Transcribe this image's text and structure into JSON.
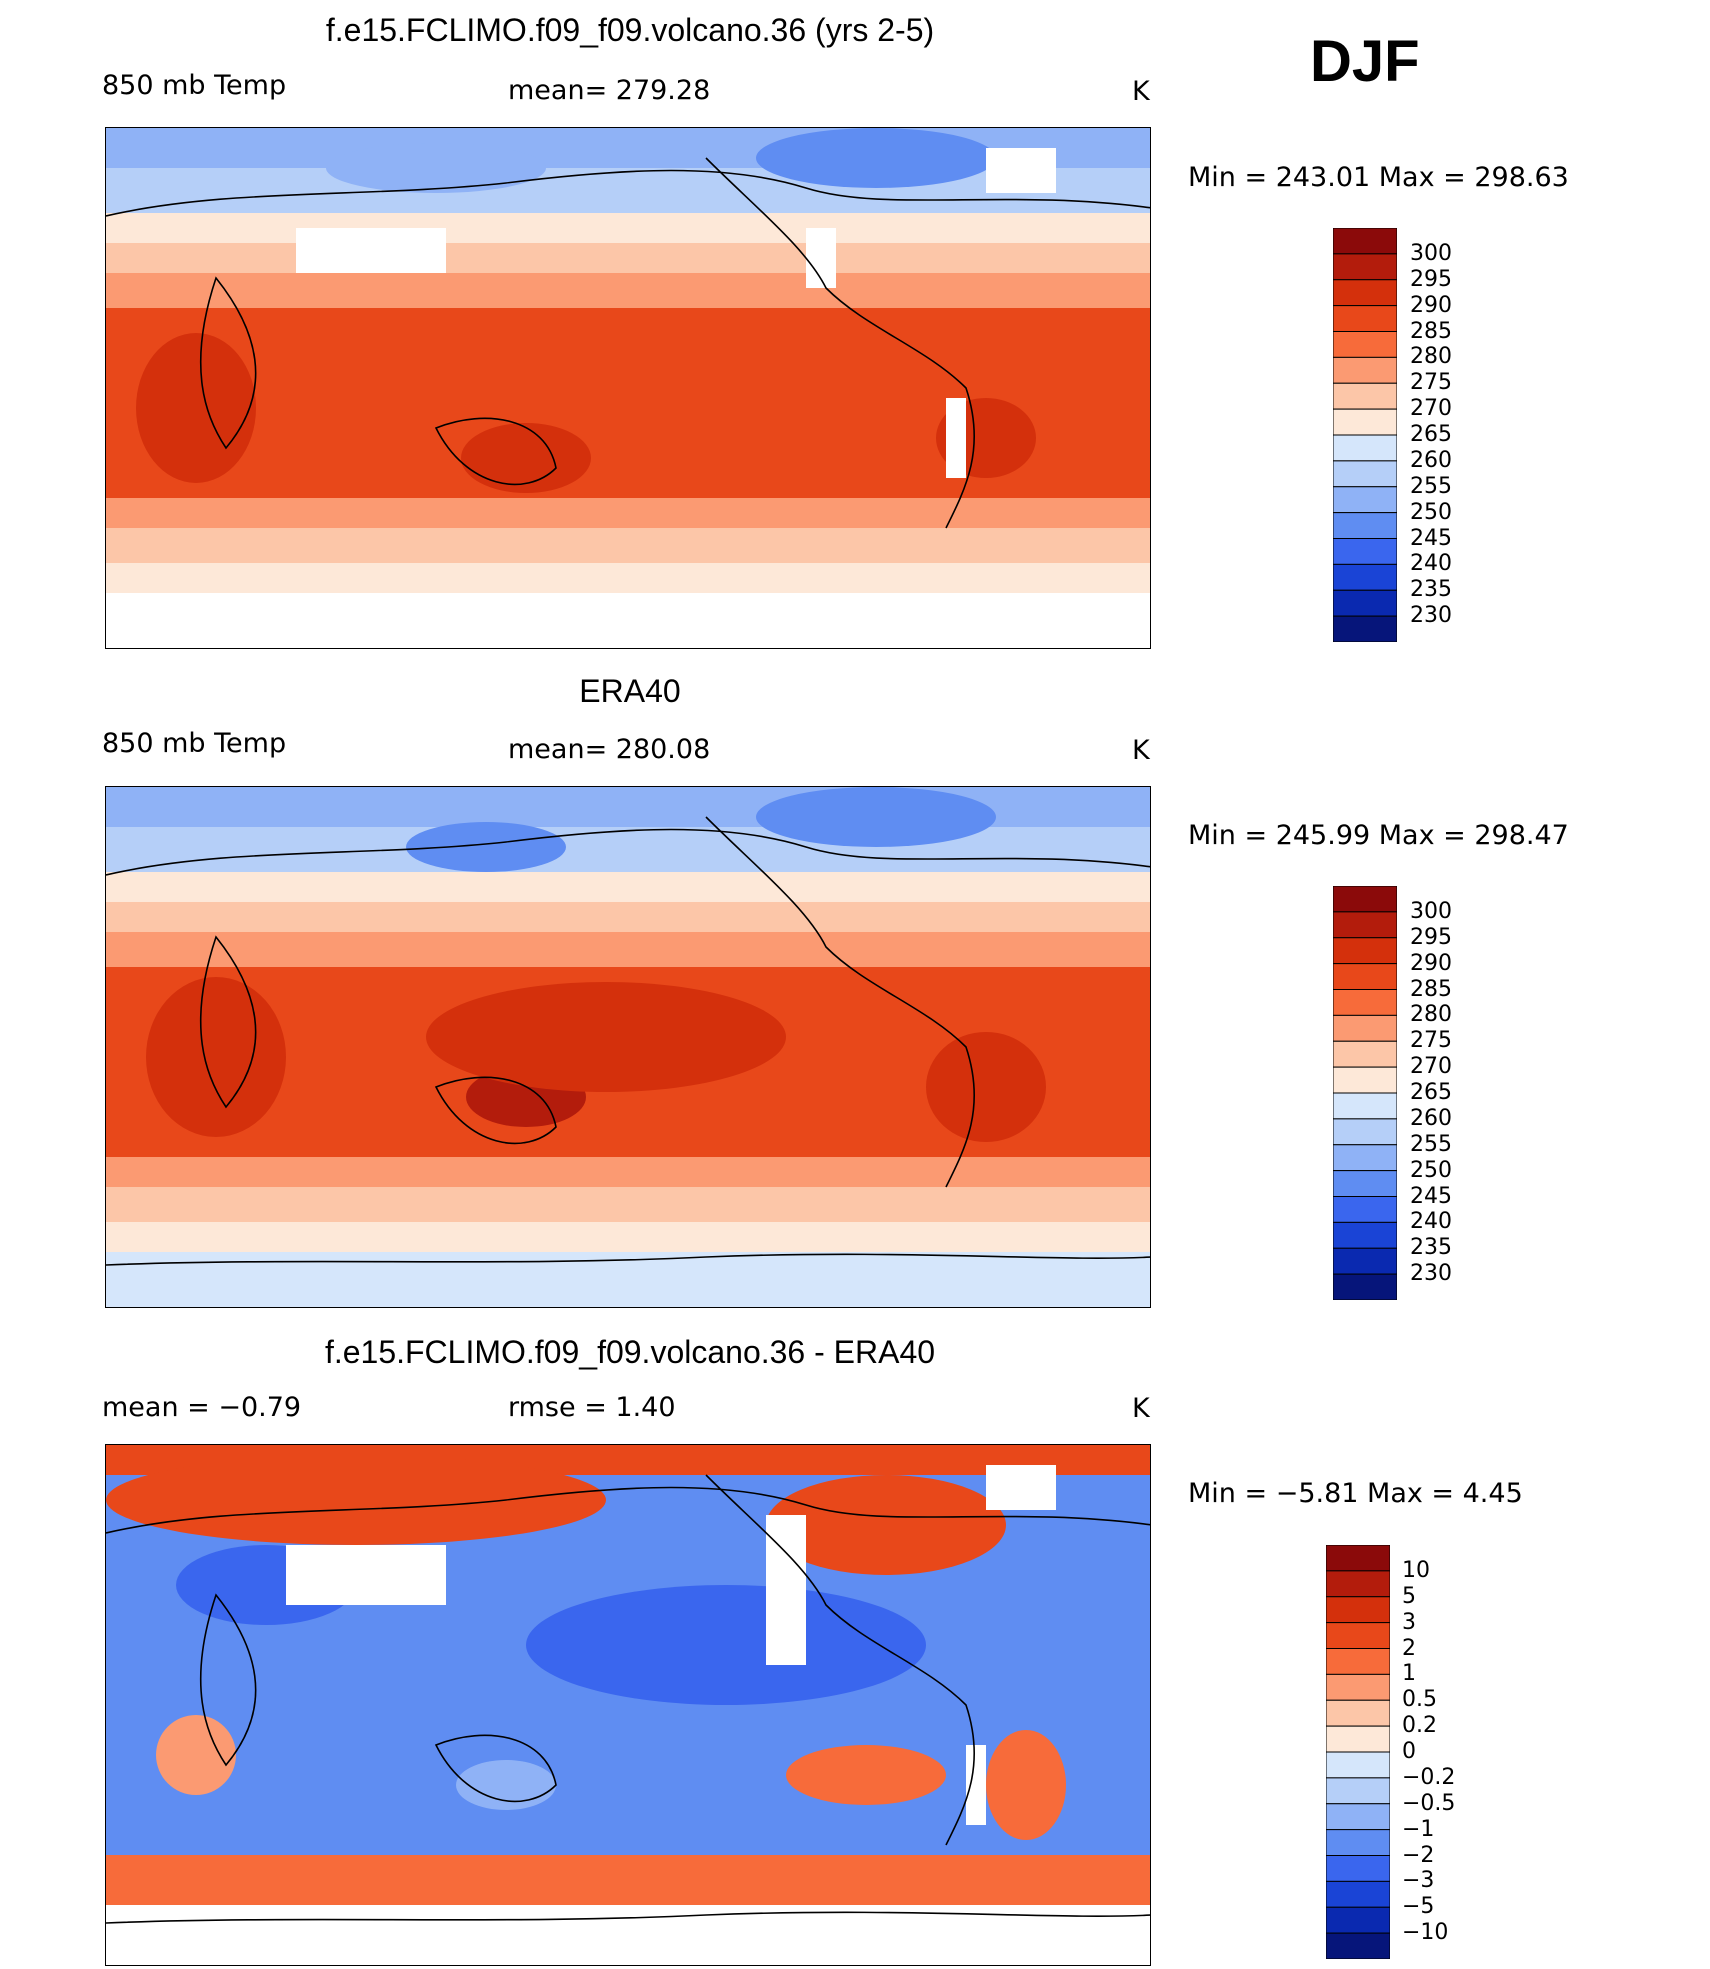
{
  "season": "DJF",
  "panels": [
    {
      "title": "f.e15.FCLIMO.f09_f09.volcano.36 (yrs 2-5)",
      "left_label": "850 mb Temp",
      "center_label": "mean=  279.28",
      "units": "K",
      "minmax": "Min  =  243.01  Max  =  298.63",
      "kind": "abs"
    },
    {
      "title": "ERA40",
      "left_label": "850 mb Temp",
      "center_label": "mean=  280.08",
      "units": "K",
      "minmax": "Min  =  245.99  Max  =  298.47",
      "kind": "abs"
    },
    {
      "title": "f.e15.FCLIMO.f09_f09.volcano.36 - ERA40",
      "left_label": "mean  =    −0.79",
      "center_label": "rmse  =     1.40",
      "units": "K",
      "minmax": "Min  =    −5.81  Max  =      4.45",
      "kind": "diff"
    }
  ],
  "colorbars": {
    "abs": {
      "labels": [
        "300",
        "295",
        "290",
        "285",
        "280",
        "275",
        "270",
        "265",
        "260",
        "255",
        "250",
        "245",
        "240",
        "235",
        "230"
      ],
      "colors": [
        "#8b0a0a",
        "#b31c0c",
        "#d4300c",
        "#e8481a",
        "#f76b3a",
        "#fb9a72",
        "#fcc6a8",
        "#fde8d8",
        "#d5e6fb",
        "#b5cff8",
        "#8fb2f6",
        "#5f8df2",
        "#3a66ee",
        "#1a44d6",
        "#0a29b0",
        "#06157a"
      ]
    },
    "diff": {
      "labels": [
        "10",
        "5",
        "3",
        "2",
        "1",
        "0.5",
        "0.2",
        "0",
        "−0.2",
        "−0.5",
        "−1",
        "−2",
        "−3",
        "−5",
        "−10"
      ],
      "colors": [
        "#8b0a0a",
        "#b31c0c",
        "#d4300c",
        "#e8481a",
        "#f76b3a",
        "#fb9a72",
        "#fcc6a8",
        "#fde8d8",
        "#d5e6fb",
        "#b5cff8",
        "#8fb2f6",
        "#5f8df2",
        "#3a66ee",
        "#1a44d6",
        "#0a29b0",
        "#06157a"
      ]
    }
  }
}
